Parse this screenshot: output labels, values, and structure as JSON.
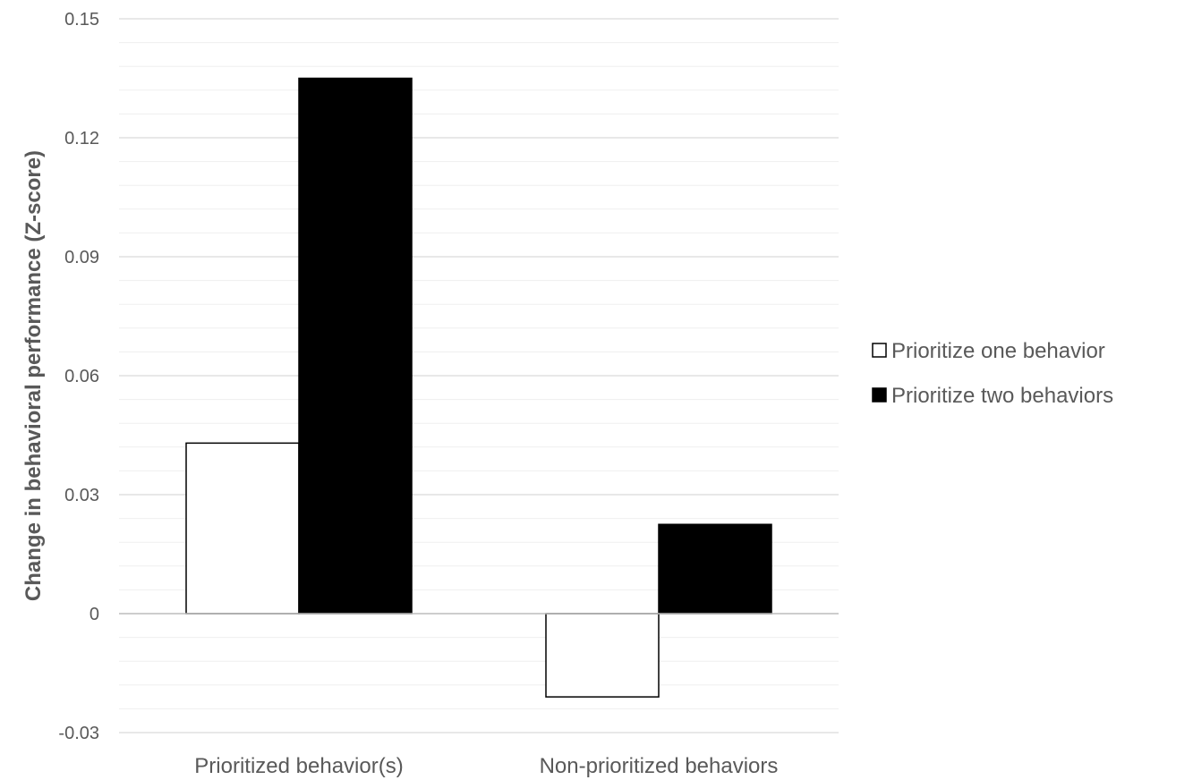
{
  "chart_data": {
    "type": "bar",
    "title": "",
    "xlabel": "",
    "ylabel": "Change in behavioral performance (Z-score)",
    "categories": [
      "Prioritized behavior(s)",
      "Non-prioritized behaviors"
    ],
    "series": [
      {
        "name": "Prioritize one behavior",
        "values": [
          0.043,
          -0.021
        ],
        "color": "#ffffff",
        "stroke": "#000000"
      },
      {
        "name": "Prioritize two behaviors",
        "values": [
          0.135,
          0.0225
        ],
        "color": "#000000",
        "stroke": "#000000"
      }
    ],
    "yticks": [
      -0.03,
      0,
      0.03,
      0.06,
      0.09,
      0.12,
      0.15
    ],
    "ytick_labels": [
      "-0.03",
      "0",
      "0.03",
      "0.06",
      "0.09",
      "0.12",
      "0.15"
    ],
    "ylim": [
      -0.03,
      0.15
    ],
    "minor_step": 0.006,
    "grid": true,
    "legend_position": "right",
    "colors": {
      "major_grid": "#d9d9d9",
      "minor_grid": "#efefef",
      "text": "#595959"
    }
  }
}
